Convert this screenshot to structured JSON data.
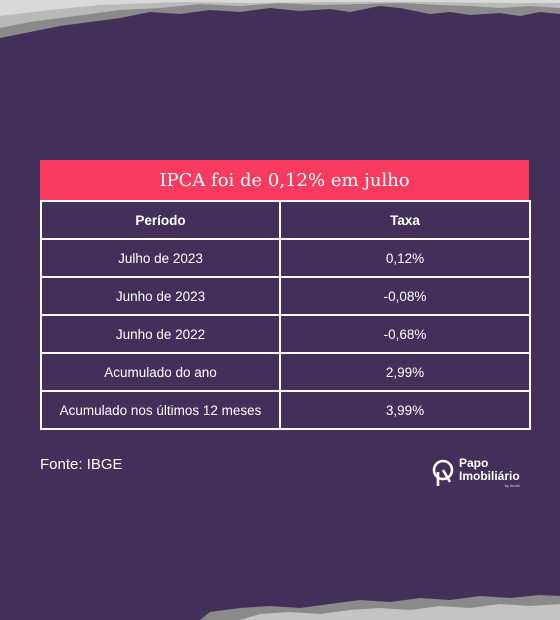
{
  "table": {
    "title": "IPCA foi de 0,12% em julho",
    "headers": [
      "Período",
      "Taxa"
    ],
    "rows": [
      [
        "Julho de 2023",
        "0,12%"
      ],
      [
        "Junho de 2023",
        "-0,08%"
      ],
      [
        "Junho de 2022",
        "-0,68%"
      ],
      [
        "Acumulado do ano",
        "2,99%"
      ],
      [
        "Acumulado nos últimos 12 meses",
        "3,99%"
      ]
    ]
  },
  "source": "Fonte: IBGE",
  "logo": {
    "line1": "Papo",
    "line2": "Imobiliário",
    "sub": "by Imobi"
  },
  "colors": {
    "background": "#42305a",
    "accent": "#f83b5f",
    "text": "#ffffff"
  }
}
